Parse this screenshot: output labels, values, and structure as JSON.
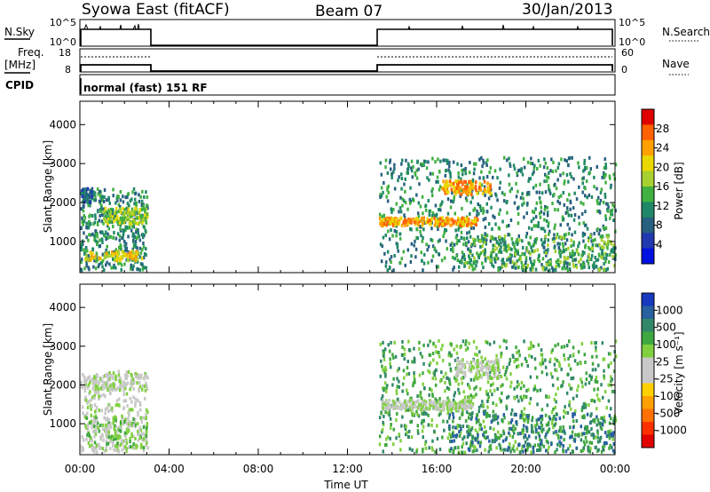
{
  "header": {
    "station": "Syowa East (fitACF)",
    "beam": "Beam 07",
    "date": "30/Jan/2013"
  },
  "top_panels": {
    "nsky_label": "N.Sky",
    "nsky_ticks": [
      "10^5",
      "10^0"
    ],
    "nsearch_label": "N.Search",
    "nsearch_ticks": [
      "10^5",
      "10^0"
    ],
    "freq_label": "Freq.",
    "freq_unit": "[MHz]",
    "freq_ticks": [
      "18",
      "8"
    ],
    "nave_label": "Nave",
    "nave_ticks": [
      "60",
      "0"
    ],
    "cpid_label": "CPID",
    "cpid_text": "normal (fast) 151 RF"
  },
  "chart_data": [
    {
      "type": "heatmap",
      "name": "power",
      "ylabel": "Slant Range [km]",
      "y_ticks": [
        1000,
        2000,
        3000,
        4000
      ],
      "ylim": [
        200,
        4600
      ],
      "x_ticks": [
        "00:00",
        "04:00",
        "08:00",
        "12:00",
        "16:00",
        "20:00",
        "00:00"
      ],
      "xlim_hours": [
        0,
        24
      ],
      "colorbar_label": "Power [dB]",
      "colorbar_ticks": [
        "28",
        "24",
        "20",
        "16",
        "12",
        "8",
        "4"
      ],
      "colorbar_colors": [
        "#e00000",
        "#ff6000",
        "#ffa000",
        "#e8d800",
        "#a8d030",
        "#40b040",
        "#208868",
        "#286080",
        "#2038b0",
        "#0010e0"
      ],
      "data_intervals_hours": [
        [
          0.0,
          3.0
        ],
        [
          13.4,
          24.0
        ]
      ]
    },
    {
      "type": "heatmap",
      "name": "velocity",
      "ylabel": "Slant Range [km]",
      "y_ticks": [
        1000,
        2000,
        3000,
        4000
      ],
      "ylim": [
        200,
        4600
      ],
      "x_ticks": [
        "00:00",
        "04:00",
        "08:00",
        "12:00",
        "16:00",
        "20:00",
        "00:00"
      ],
      "xlim_hours": [
        0,
        24
      ],
      "xlabel": "Time UT",
      "colorbar_label": "Velocity [m s⁻¹]",
      "colorbar_ticks": [
        "1000",
        "500",
        "100",
        "25",
        "-25",
        "-100",
        "-500",
        "-1000"
      ],
      "colorbar_colors": [
        "#1838c0",
        "#2860a0",
        "#308868",
        "#40a840",
        "#80d040",
        "#c8c8c8",
        "#c8c8c8",
        "#ffd000",
        "#ffa000",
        "#ff7000",
        "#ff3000",
        "#e00000"
      ],
      "data_intervals_hours": [
        [
          0.0,
          3.0
        ],
        [
          13.4,
          24.0
        ]
      ]
    }
  ]
}
